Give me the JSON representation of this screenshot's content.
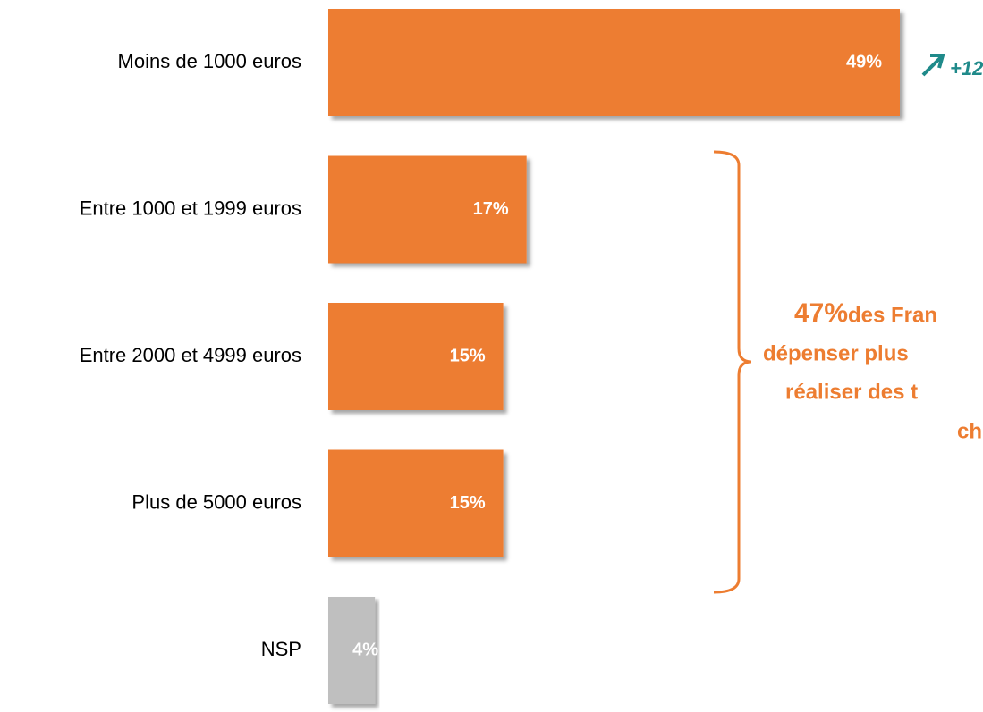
{
  "chart_data": {
    "type": "bar",
    "orientation": "horizontal",
    "categories": [
      "Moins de 1000 euros",
      "Entre 1000 et 1999 euros",
      "Entre 2000 et 4999 euros",
      "Plus de 5000 euros",
      "NSP"
    ],
    "values": [
      49,
      17,
      15,
      15,
      4
    ],
    "value_labels": [
      "49%",
      "17%",
      "15%",
      "15%",
      "4%"
    ],
    "colors": [
      "#ED7D31",
      "#ED7D31",
      "#ED7D31",
      "#ED7D31",
      "#BFBFBF"
    ],
    "trend_annotation": "+12",
    "bracket_annotation": {
      "highlight": "47%",
      "lines": [
        "des Fran",
        "dépenser plus",
        "réaliser des t",
        "ch"
      ]
    }
  }
}
